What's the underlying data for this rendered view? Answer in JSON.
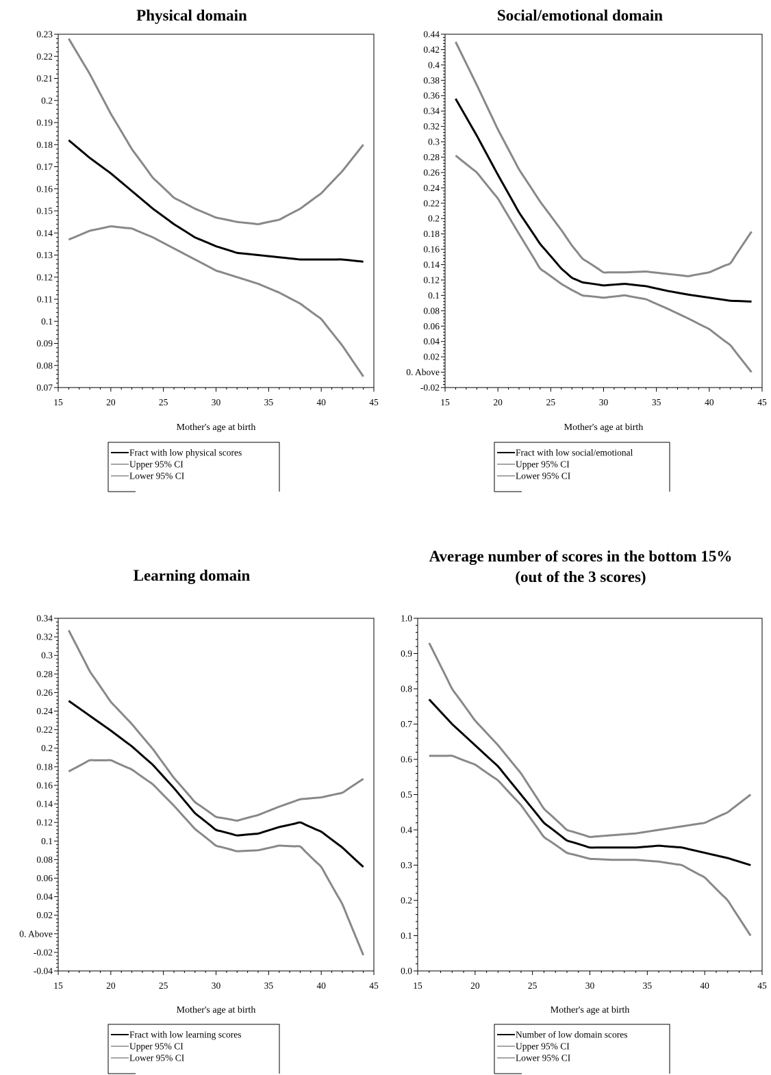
{
  "chart_data": [
    {
      "type": "line",
      "title": "Physical domain",
      "xlabel": "Mother's age at birth",
      "xlim": [
        15,
        45
      ],
      "xticks": [
        15,
        20,
        25,
        30,
        35,
        40,
        45
      ],
      "ylim": [
        0.07,
        0.23
      ],
      "yticks": [
        0.07,
        0.08,
        0.09,
        0.1,
        0.11,
        0.12,
        0.13,
        0.14,
        0.15,
        0.16,
        0.17,
        0.18,
        0.19,
        0.2,
        0.21,
        0.22,
        0.23
      ],
      "ytick_labels": [
        "0.07",
        "0.08",
        "0.09",
        "0.1",
        "0.11",
        "0.12",
        "0.13",
        "0.14",
        "0.15",
        "0.16",
        "0.17",
        "0.18",
        "0.19",
        "0.2",
        "0.21",
        "0.22",
        "0.23"
      ],
      "grid": false,
      "legend_position": "below",
      "x": [
        16,
        18,
        20,
        22,
        24,
        26,
        28,
        30,
        32,
        34,
        36,
        38,
        40,
        42,
        44
      ],
      "series": [
        {
          "name": "Fract with low physical scores",
          "color": "#000000",
          "width": 3,
          "values": [
            0.182,
            0.174,
            0.167,
            0.159,
            0.151,
            0.144,
            0.138,
            0.134,
            0.131,
            0.13,
            0.129,
            0.128,
            0.128,
            0.128,
            0.127
          ]
        },
        {
          "name": "Upper 95% CI",
          "color": "#888888",
          "width": 3,
          "values": [
            0.228,
            0.212,
            0.194,
            0.178,
            0.165,
            0.156,
            0.151,
            0.147,
            0.145,
            0.144,
            0.146,
            0.151,
            0.158,
            0.168,
            0.18
          ]
        },
        {
          "name": "Lower 95% CI",
          "color": "#888888",
          "width": 3,
          "values": [
            0.137,
            0.141,
            0.143,
            0.142,
            0.138,
            0.133,
            0.128,
            0.123,
            0.12,
            0.117,
            0.113,
            0.108,
            0.101,
            0.089,
            0.075
          ]
        }
      ],
      "legend": [
        "Fract with low physical scores",
        "Upper 95% CI",
        "Lower 95% CI"
      ]
    },
    {
      "type": "line",
      "title": "Social/emotional domain",
      "xlabel": "Mother's age at birth",
      "xlim": [
        15,
        45
      ],
      "xticks": [
        15,
        20,
        25,
        30,
        35,
        40,
        45
      ],
      "ylim": [
        -0.02,
        0.44
      ],
      "yticks": [
        -0.02,
        0.0,
        0.02,
        0.04,
        0.06,
        0.08,
        0.1,
        0.12,
        0.14,
        0.16,
        0.18,
        0.2,
        0.22,
        0.24,
        0.26,
        0.28,
        0.3,
        0.32,
        0.34,
        0.36,
        0.38,
        0.4,
        0.42,
        0.44
      ],
      "ytick_labels": [
        "-0.02",
        "0. Above",
        "0.02",
        "0.04",
        "0.06",
        "0.08",
        "0.1",
        "0.12",
        "0.14",
        "0.16",
        "0.18",
        "0.2",
        "0.22",
        "0.24",
        "0.26",
        "0.28",
        "0.3",
        "0.32",
        "0.34",
        "0.36",
        "0.38",
        "0.4",
        "0.42",
        "0.44"
      ],
      "grid": false,
      "legend_position": "below",
      "x": [
        16,
        18,
        20,
        22,
        24,
        26,
        27,
        28,
        30,
        32,
        34,
        36,
        38,
        40,
        42,
        44
      ],
      "series": [
        {
          "name": "Fract with low social/emotional",
          "color": "#000000",
          "width": 3,
          "values": [
            0.356,
            0.308,
            0.257,
            0.208,
            0.167,
            0.135,
            0.123,
            0.117,
            0.113,
            0.115,
            0.112,
            0.106,
            0.101,
            0.097,
            0.093,
            0.092
          ]
        },
        {
          "name": "Upper 95% CI",
          "color": "#888888",
          "width": 3,
          "values": [
            0.43,
            0.374,
            0.316,
            0.264,
            0.222,
            0.185,
            0.165,
            0.148,
            0.13,
            0.13,
            0.131,
            0.128,
            0.125,
            0.13,
            0.142,
            0.183
          ]
        },
        {
          "name": "Lower 95% CI",
          "color": "#888888",
          "width": 3,
          "values": [
            0.282,
            0.26,
            0.226,
            0.18,
            0.135,
            0.115,
            0.107,
            0.1,
            0.097,
            0.1,
            0.095,
            0.083,
            0.07,
            0.056,
            0.035,
            0.0
          ]
        }
      ],
      "legend": [
        "Fract with low social/emotional",
        "Upper 95% CI",
        "Lower 95% CI"
      ]
    },
    {
      "type": "line",
      "title": "Learning domain",
      "xlabel": "Mother's age at birth",
      "xlim": [
        15,
        45
      ],
      "xticks": [
        15,
        20,
        25,
        30,
        35,
        40,
        45
      ],
      "ylim": [
        -0.04,
        0.34
      ],
      "yticks": [
        -0.04,
        -0.02,
        0.0,
        0.02,
        0.04,
        0.06,
        0.08,
        0.1,
        0.12,
        0.14,
        0.16,
        0.18,
        0.2,
        0.22,
        0.24,
        0.26,
        0.28,
        0.3,
        0.32,
        0.34
      ],
      "ytick_labels": [
        "-0.04",
        "-0.02",
        "0. Above",
        "0.02",
        "0.04",
        "0.06",
        "0.08",
        "0.1",
        "0.12",
        "0.14",
        "0.16",
        "0.18",
        "0.2",
        "0.22",
        "0.24",
        "0.26",
        "0.28",
        "0.3",
        "0.32",
        "0.34"
      ],
      "grid": false,
      "legend_position": "below",
      "x": [
        16,
        18,
        20,
        22,
        24,
        26,
        28,
        30,
        32,
        34,
        36,
        38,
        40,
        42,
        44
      ],
      "series": [
        {
          "name": "Fract with low learning scores",
          "color": "#000000",
          "width": 3,
          "values": [
            0.251,
            0.235,
            0.219,
            0.202,
            0.182,
            0.157,
            0.13,
            0.112,
            0.106,
            0.108,
            0.115,
            0.12,
            0.11,
            0.093,
            0.072
          ]
        },
        {
          "name": "Upper 95% CI",
          "color": "#888888",
          "width": 3,
          "values": [
            0.327,
            0.283,
            0.25,
            0.226,
            0.199,
            0.168,
            0.142,
            0.126,
            0.122,
            0.128,
            0.137,
            0.145,
            0.147,
            0.152,
            0.167
          ]
        },
        {
          "name": "Lower 95% CI",
          "color": "#888888",
          "width": 3,
          "values": [
            0.175,
            0.187,
            0.187,
            0.177,
            0.161,
            0.138,
            0.113,
            0.095,
            0.089,
            0.09,
            0.095,
            0.094,
            0.072,
            0.032,
            -0.023
          ]
        }
      ],
      "legend": [
        "Fract with low learning scores",
        "Upper 95% CI",
        "Lower 95% CI"
      ]
    },
    {
      "type": "line",
      "title": "Average number of scores in the bottom 15% (out of the 3 scores)",
      "title_lines": [
        "Average number of scores in the bottom 15%",
        "(out of the 3 scores)"
      ],
      "xlabel": "Mother's age at birth",
      "xlim": [
        15,
        45
      ],
      "xticks": [
        15,
        20,
        25,
        30,
        35,
        40,
        45
      ],
      "ylim": [
        0.0,
        1.0
      ],
      "yticks": [
        0.0,
        0.1,
        0.2,
        0.3,
        0.4,
        0.5,
        0.6,
        0.7,
        0.8,
        0.9,
        1.0
      ],
      "ytick_labels": [
        "0.0",
        "0.1",
        "0.2",
        "0.3",
        "0.4",
        "0.5",
        "0.6",
        "0.7",
        "0.8",
        "0.9",
        "1.0"
      ],
      "grid": false,
      "legend_position": "below",
      "x": [
        16,
        18,
        20,
        22,
        24,
        26,
        28,
        30,
        32,
        34,
        36,
        38,
        40,
        42,
        44
      ],
      "series": [
        {
          "name": "Number of low domain scores",
          "color": "#000000",
          "width": 3,
          "values": [
            0.77,
            0.7,
            0.64,
            0.58,
            0.5,
            0.42,
            0.37,
            0.35,
            0.35,
            0.35,
            0.355,
            0.35,
            0.335,
            0.32,
            0.3
          ]
        },
        {
          "name": "Upper 95% CI",
          "color": "#888888",
          "width": 3,
          "values": [
            0.93,
            0.8,
            0.71,
            0.64,
            0.56,
            0.46,
            0.4,
            0.38,
            0.385,
            0.39,
            0.4,
            0.41,
            0.42,
            0.45,
            0.5
          ]
        },
        {
          "name": "Lower 95% CI",
          "color": "#888888",
          "width": 3,
          "values": [
            0.61,
            0.61,
            0.585,
            0.54,
            0.47,
            0.38,
            0.335,
            0.318,
            0.315,
            0.315,
            0.31,
            0.3,
            0.265,
            0.2,
            0.1
          ]
        }
      ],
      "legend": [
        "Number of low domain scores",
        "Upper 95% CI",
        "Lower 95% CI"
      ]
    }
  ]
}
